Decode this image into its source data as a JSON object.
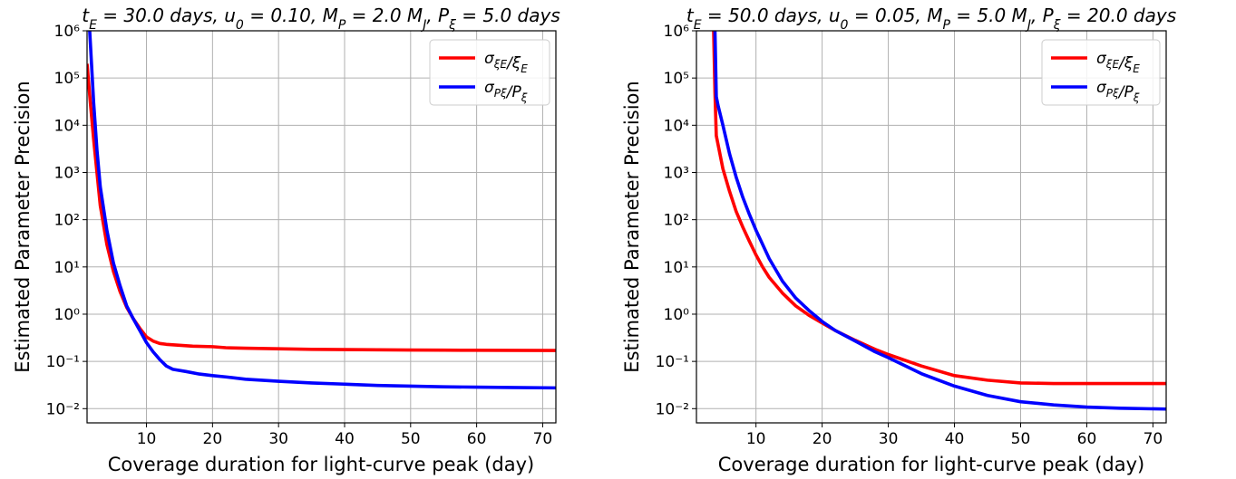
{
  "chart_data": [
    {
      "type": "line",
      "title": "t_E = 30.0 days, u_0 = 0.10,  M_P = 2.0 M_J, P_ξ = 5.0 days",
      "xlabel": "Coverage duration for light-curve peak (day)",
      "ylabel": "Estimated Parameter Precision",
      "xlim": [
        1,
        72
      ],
      "ylim": [
        0.005,
        1000000
      ],
      "yscale": "log",
      "grid": true,
      "legend_position": "top-right",
      "xticks": [
        10,
        20,
        30,
        40,
        50,
        60,
        70
      ],
      "yticks": [
        {
          "value": 0.01,
          "label": "10⁻²"
        },
        {
          "value": 0.1,
          "label": "10⁻¹"
        },
        {
          "value": 1,
          "label": "10⁰"
        },
        {
          "value": 10,
          "label": "10¹"
        },
        {
          "value": 100,
          "label": "10²"
        },
        {
          "value": 1000,
          "label": "10³"
        },
        {
          "value": 10000,
          "label": "10⁴"
        },
        {
          "value": 100000,
          "label": "10⁵"
        },
        {
          "value": 1000000,
          "label": "10⁶"
        }
      ],
      "series": [
        {
          "name": "σ_ξE / ξ_E",
          "color": "#ff0000",
          "x": [
            1,
            1.5,
            2,
            3,
            4,
            5,
            6,
            7,
            8,
            9,
            10,
            11,
            12,
            13,
            15,
            17,
            20,
            22,
            25,
            30,
            35,
            40,
            45,
            50,
            55,
            60,
            65,
            72
          ],
          "y": [
            200000,
            30000,
            5000,
            200,
            30,
            8,
            3,
            1.4,
            0.8,
            0.5,
            0.33,
            0.27,
            0.24,
            0.23,
            0.22,
            0.21,
            0.205,
            0.195,
            0.19,
            0.185,
            0.18,
            0.178,
            0.176,
            0.174,
            0.173,
            0.172,
            0.171,
            0.17
          ]
        },
        {
          "name": "σ_Pξ / P_ξ",
          "color": "#0000ff",
          "x": [
            1.4,
            2,
            2.5,
            3,
            4,
            5,
            6,
            7,
            8,
            9,
            10,
            11,
            12,
            13,
            14,
            16,
            18,
            20,
            22,
            25,
            30,
            35,
            40,
            45,
            50,
            55,
            60,
            65,
            72
          ],
          "y": [
            1000000,
            30000,
            3000,
            500,
            60,
            12,
            4,
            1.5,
            0.8,
            0.45,
            0.25,
            0.16,
            0.11,
            0.08,
            0.068,
            0.061,
            0.054,
            0.05,
            0.047,
            0.042,
            0.038,
            0.035,
            0.033,
            0.031,
            0.03,
            0.029,
            0.0285,
            0.028,
            0.0275
          ]
        }
      ]
    },
    {
      "type": "line",
      "title": "t_E = 50.0 days, u_0 = 0.05,  M_P = 5.0 M_J, P_ξ = 20.0 days",
      "xlabel": "Coverage duration for light-curve peak  (day)",
      "ylabel": "Estimated Parameter Precision",
      "xlim": [
        1,
        72
      ],
      "ylim": [
        0.005,
        1000000
      ],
      "yscale": "log",
      "grid": true,
      "legend_position": "top-right",
      "xticks": [
        10,
        20,
        30,
        40,
        50,
        60,
        70
      ],
      "yticks": [
        {
          "value": 0.01,
          "label": "10⁻²"
        },
        {
          "value": 0.1,
          "label": "10⁻¹"
        },
        {
          "value": 1,
          "label": "10⁰"
        },
        {
          "value": 10,
          "label": "10¹"
        },
        {
          "value": 100,
          "label": "10²"
        },
        {
          "value": 1000,
          "label": "10³"
        },
        {
          "value": 10000,
          "label": "10⁴"
        },
        {
          "value": 100000,
          "label": "10⁵"
        },
        {
          "value": 1000000,
          "label": "10⁶"
        }
      ],
      "series": [
        {
          "name": "σ_ξE / ξ_E",
          "color": "#ff0000",
          "x": [
            3.6,
            3.8,
            4,
            5,
            6,
            7,
            8,
            9,
            10,
            11,
            12,
            14,
            16,
            18,
            20,
            22,
            25,
            28,
            30,
            35,
            40,
            45,
            50,
            55,
            60,
            65,
            72
          ],
          "y": [
            1000000,
            50000,
            6000,
            1200,
            400,
            150,
            70,
            35,
            18,
            10,
            6,
            2.8,
            1.5,
            0.95,
            0.65,
            0.45,
            0.28,
            0.18,
            0.14,
            0.08,
            0.05,
            0.04,
            0.035,
            0.034,
            0.034,
            0.034,
            0.034
          ]
        },
        {
          "name": "σ_Pξ / P_ξ",
          "color": "#0000ff",
          "x": [
            3.8,
            4,
            4.3,
            5,
            6,
            7,
            8,
            9,
            10,
            11,
            12,
            14,
            16,
            18,
            20,
            22,
            25,
            28,
            30,
            35,
            40,
            45,
            50,
            55,
            60,
            65,
            72
          ],
          "y": [
            1000000,
            40000,
            25000,
            10000,
            2500,
            800,
            300,
            130,
            60,
            30,
            15,
            5,
            2.2,
            1.2,
            0.7,
            0.45,
            0.27,
            0.16,
            0.12,
            0.055,
            0.03,
            0.019,
            0.014,
            0.012,
            0.0108,
            0.0102,
            0.0098
          ]
        }
      ]
    }
  ]
}
